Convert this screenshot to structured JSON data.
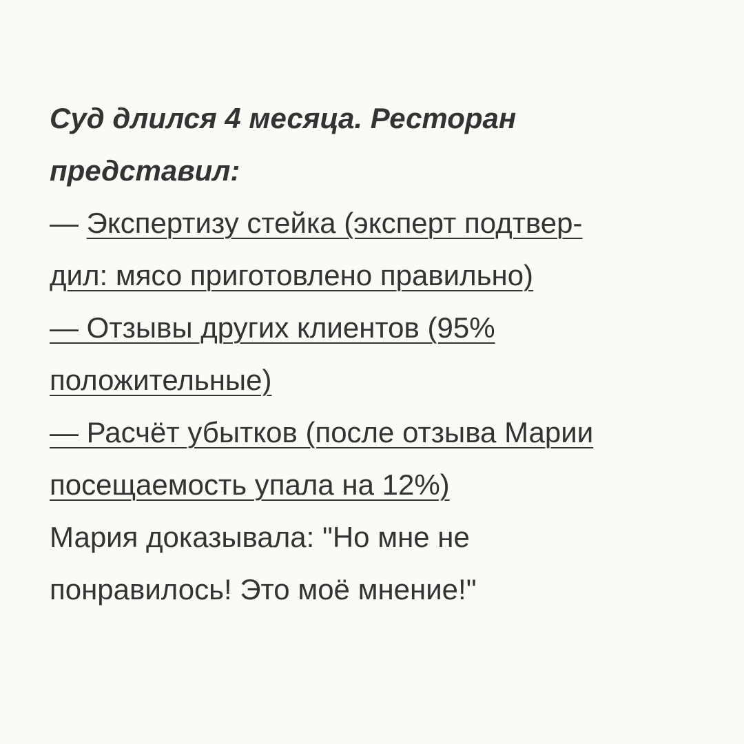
{
  "post": {
    "heading_lines": [
      "Суд длился 4 месяца. Ресторан",
      "представил:"
    ],
    "evidence": [
      {
        "dash": "— ",
        "lines": [
          "Экспертизу стейка (эксперт подтвер-",
          "дил: мясо приготовлено правильно)"
        ],
        "dash_underlined": false
      },
      {
        "dash": "— ",
        "lines": [
          "Отзывы других клиентов (95%",
          "положительные)"
        ],
        "dash_underlined": true
      },
      {
        "dash": "— ",
        "lines": [
          "Расчёт убытков (после отзыва Марии",
          "посещаемость упала на 12%)"
        ],
        "dash_underlined": true
      }
    ],
    "closing_lines": [
      "Мария доказывала: \"Но мне не",
      "понравилось! Это моё мнение!\""
    ]
  },
  "colors": {
    "background": "#fafaf6",
    "text": "#333333"
  }
}
